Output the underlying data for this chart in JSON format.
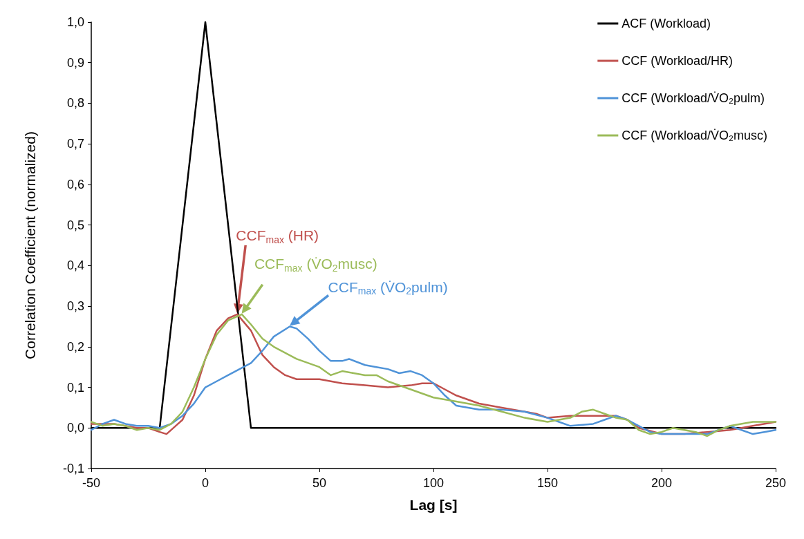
{
  "chart_data": {
    "type": "line",
    "xlabel": "Lag [s]",
    "ylabel": "Correlation Coefficient (normalized)",
    "xlim": [
      -50,
      250
    ],
    "xticks": [
      -50,
      0,
      50,
      100,
      150,
      200,
      250
    ],
    "ylim": [
      -0.1,
      1.0
    ],
    "yticks": [
      {
        "value": -0.1,
        "label": "-0,1"
      },
      {
        "value": 0,
        "label": "0,0"
      },
      {
        "value": 0.1,
        "label": "0,1"
      },
      {
        "value": 0.2,
        "label": "0,2"
      },
      {
        "value": 0.3,
        "label": "0,3"
      },
      {
        "value": 0.4,
        "label": "0,4"
      },
      {
        "value": 0.5,
        "label": "0,5"
      },
      {
        "value": 0.6,
        "label": "0,6"
      },
      {
        "value": 0.7,
        "label": "0,7"
      },
      {
        "value": 0.8,
        "label": "0,8"
      },
      {
        "value": 0.9,
        "label": "0,9"
      },
      {
        "value": 1.0,
        "label": "1,0"
      }
    ],
    "grid": false,
    "legend": "top right",
    "marker": "none",
    "line_style": "solid",
    "series": [
      {
        "name": "ACF (Workload)",
        "color": "#000000",
        "x": [
          -50,
          -20,
          0,
          20,
          250
        ],
        "values": [
          0,
          0,
          1,
          0,
          0
        ]
      },
      {
        "name": "CCF (Workload/HR)",
        "color": "#c0504d",
        "x": [
          -50,
          -40,
          -30,
          -25,
          -20,
          -17,
          -10,
          -5,
          0,
          5,
          10,
          14,
          20,
          25,
          30,
          35,
          40,
          50,
          60,
          70,
          80,
          90,
          95,
          100,
          105,
          110,
          120,
          130,
          140,
          145,
          150,
          160,
          170,
          180,
          185,
          190,
          200,
          210,
          220,
          230,
          240,
          250
        ],
        "values": [
          0.01,
          0.01,
          0.0,
          0.0,
          -0.01,
          -0.015,
          0.02,
          0.08,
          0.17,
          0.24,
          0.27,
          0.28,
          0.24,
          0.18,
          0.15,
          0.13,
          0.12,
          0.12,
          0.11,
          0.105,
          0.1,
          0.105,
          0.11,
          0.11,
          0.095,
          0.08,
          0.06,
          0.05,
          0.04,
          0.035,
          0.025,
          0.03,
          0.03,
          0.03,
          0.02,
          0.0,
          -0.015,
          -0.015,
          -0.01,
          -0.005,
          0.005,
          0.015
        ]
      },
      {
        "name": "CCF (Workload/V̇O₂pulm)",
        "color": "#4f93d8",
        "x": [
          -50,
          -45,
          -40,
          -35,
          -30,
          -25,
          -20,
          -15,
          -10,
          -5,
          0,
          5,
          10,
          15,
          20,
          25,
          30,
          37,
          40,
          45,
          50,
          55,
          60,
          63,
          70,
          75,
          80,
          85,
          90,
          95,
          100,
          105,
          110,
          120,
          130,
          140,
          150,
          155,
          160,
          170,
          175,
          180,
          185,
          190,
          195,
          200,
          210,
          220,
          225,
          230,
          235,
          240,
          245,
          250
        ],
        "values": [
          -0.005,
          0.01,
          0.02,
          0.01,
          0.005,
          0.005,
          0.0,
          0.01,
          0.03,
          0.06,
          0.1,
          0.115,
          0.13,
          0.145,
          0.16,
          0.19,
          0.225,
          0.25,
          0.245,
          0.22,
          0.19,
          0.165,
          0.165,
          0.17,
          0.155,
          0.15,
          0.145,
          0.135,
          0.14,
          0.13,
          0.11,
          0.08,
          0.055,
          0.045,
          0.045,
          0.04,
          0.025,
          0.015,
          0.005,
          0.01,
          0.02,
          0.03,
          0.02,
          0.005,
          -0.01,
          -0.015,
          -0.015,
          -0.015,
          -0.005,
          0.005,
          -0.005,
          -0.015,
          -0.01,
          -0.005
        ]
      },
      {
        "name": "CCF (Workload/V̇O₂musc)",
        "color": "#9bbb59",
        "x": [
          -50,
          -45,
          -40,
          -35,
          -30,
          -25,
          -20,
          -15,
          -10,
          -5,
          0,
          5,
          10,
          16,
          20,
          25,
          30,
          40,
          50,
          55,
          60,
          65,
          70,
          75,
          80,
          90,
          100,
          110,
          120,
          130,
          140,
          150,
          155,
          160,
          165,
          170,
          175,
          180,
          185,
          190,
          195,
          200,
          205,
          210,
          215,
          220,
          225,
          230,
          240,
          250
        ],
        "values": [
          0.015,
          0.005,
          0.01,
          0.005,
          -0.005,
          0.0,
          -0.005,
          0.01,
          0.04,
          0.1,
          0.17,
          0.23,
          0.265,
          0.28,
          0.255,
          0.22,
          0.2,
          0.17,
          0.15,
          0.13,
          0.14,
          0.135,
          0.13,
          0.13,
          0.115,
          0.095,
          0.075,
          0.065,
          0.055,
          0.04,
          0.025,
          0.015,
          0.02,
          0.025,
          0.04,
          0.045,
          0.035,
          0.025,
          0.02,
          -0.005,
          -0.015,
          -0.01,
          0.0,
          -0.005,
          -0.01,
          -0.02,
          -0.005,
          0.005,
          0.015,
          0.015
        ]
      }
    ],
    "annotations": [
      {
        "text": "CCF$_{max}$ (HR)",
        "x": 14,
        "y": 0.28
      },
      {
        "text": "CCF$_{max}$ (V̇O$_{2}$musc)",
        "x": 16,
        "y": 0.28
      },
      {
        "text": "CCF$_{max}$ (V̇O$_{2}$pulm)",
        "x": 37,
        "y": 0.25
      }
    ]
  }
}
